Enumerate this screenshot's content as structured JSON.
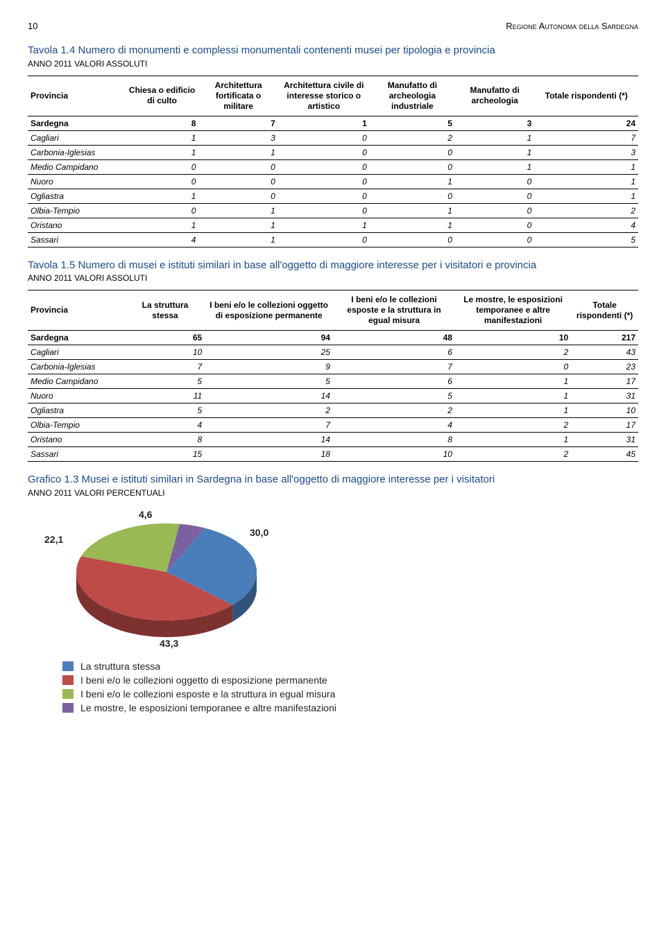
{
  "header": {
    "page_number": "10",
    "doc_title": "Regione Autonoma della Sardegna"
  },
  "table1": {
    "title": "Tavola 1.4 Numero di monumenti e complessi monumentali contenenti musei per tipologia e provincia",
    "subtitle": "ANNO 2011 VALORI ASSOLUTI",
    "columns": [
      "Provincia",
      "Chiesa o edificio di culto",
      "Architettura fortificata o militare",
      "Architettura civile di interesse storico o artistico",
      "Manufatto di archeologia industriale",
      "Manufatto di archeologia",
      "Totale rispondenti (*)"
    ],
    "rows": [
      {
        "label": "Sardegna",
        "vals": [
          "8",
          "7",
          "1",
          "5",
          "3",
          "24"
        ],
        "bold": true
      },
      {
        "label": "Cagliari",
        "vals": [
          "1",
          "3",
          "0",
          "2",
          "1",
          "7"
        ]
      },
      {
        "label": "Carbonia-Iglesias",
        "vals": [
          "1",
          "1",
          "0",
          "0",
          "1",
          "3"
        ]
      },
      {
        "label": "Medio Campidano",
        "vals": [
          "0",
          "0",
          "0",
          "0",
          "1",
          "1"
        ]
      },
      {
        "label": "Nuoro",
        "vals": [
          "0",
          "0",
          "0",
          "1",
          "0",
          "1"
        ]
      },
      {
        "label": "Ogliastra",
        "vals": [
          "1",
          "0",
          "0",
          "0",
          "0",
          "1"
        ]
      },
      {
        "label": "Olbia-Tempio",
        "vals": [
          "0",
          "1",
          "0",
          "1",
          "0",
          "2"
        ]
      },
      {
        "label": "Oristano",
        "vals": [
          "1",
          "1",
          "1",
          "1",
          "0",
          "4"
        ]
      },
      {
        "label": "Sassari",
        "vals": [
          "4",
          "1",
          "0",
          "0",
          "0",
          "5"
        ]
      }
    ]
  },
  "table2": {
    "title": "Tavola 1.5 Numero di musei e istituti similari in base all'oggetto di maggiore interesse per i visitatori e provincia",
    "subtitle": "ANNO 2011 VALORI ASSOLUTI",
    "columns": [
      "Provincia",
      "La struttura stessa",
      "I beni e/o le collezioni oggetto di esposizione permanente",
      "I beni e/o le collezioni esposte e la struttura in egual misura",
      "Le mostre, le esposizioni temporanee e altre manifestazioni",
      "Totale rispondenti (*)"
    ],
    "rows": [
      {
        "label": "Sardegna",
        "vals": [
          "65",
          "94",
          "48",
          "10",
          "217"
        ],
        "bold": true
      },
      {
        "label": "Cagliari",
        "vals": [
          "10",
          "25",
          "6",
          "2",
          "43"
        ]
      },
      {
        "label": "Carbonia-Iglesias",
        "vals": [
          "7",
          "9",
          "7",
          "0",
          "23"
        ]
      },
      {
        "label": "Medio Campidano",
        "vals": [
          "5",
          "5",
          "6",
          "1",
          "17"
        ]
      },
      {
        "label": "Nuoro",
        "vals": [
          "11",
          "14",
          "5",
          "1",
          "31"
        ]
      },
      {
        "label": "Ogliastra",
        "vals": [
          "5",
          "2",
          "2",
          "1",
          "10"
        ]
      },
      {
        "label": "Olbia-Tempio",
        "vals": [
          "4",
          "7",
          "4",
          "2",
          "17"
        ]
      },
      {
        "label": "Oristano",
        "vals": [
          "8",
          "14",
          "8",
          "1",
          "31"
        ]
      },
      {
        "label": "Sassari",
        "vals": [
          "15",
          "18",
          "10",
          "2",
          "45"
        ]
      }
    ]
  },
  "chart": {
    "title": "Grafico 1.3 Musei e istituti similari in Sardegna in base all'oggetto di maggiore interesse per i visitatori",
    "subtitle": "ANNO 2011 VALORI PERCENTUALI",
    "type": "pie-3d",
    "background_color": "#ffffff",
    "label_fontsize": 14,
    "label_fontweight": "bold",
    "slices": [
      {
        "label": "La struttura stessa",
        "value": 30.0,
        "color": "#4a7ebb"
      },
      {
        "label": "I beni e/o le collezioni oggetto di esposizione permanente",
        "value": 43.3,
        "color": "#be4b48"
      },
      {
        "label": "I beni e/o le collezioni esposte e la struttura in egual misura",
        "value": 22.1,
        "color": "#98b954"
      },
      {
        "label": "Le mostre, le esposizioni temporanee e altre manifestazioni",
        "value": 4.6,
        "color": "#7d60a0"
      }
    ],
    "side_shade": {
      "color_left": "#6f8c3f",
      "color_right": "#35598a"
    }
  }
}
